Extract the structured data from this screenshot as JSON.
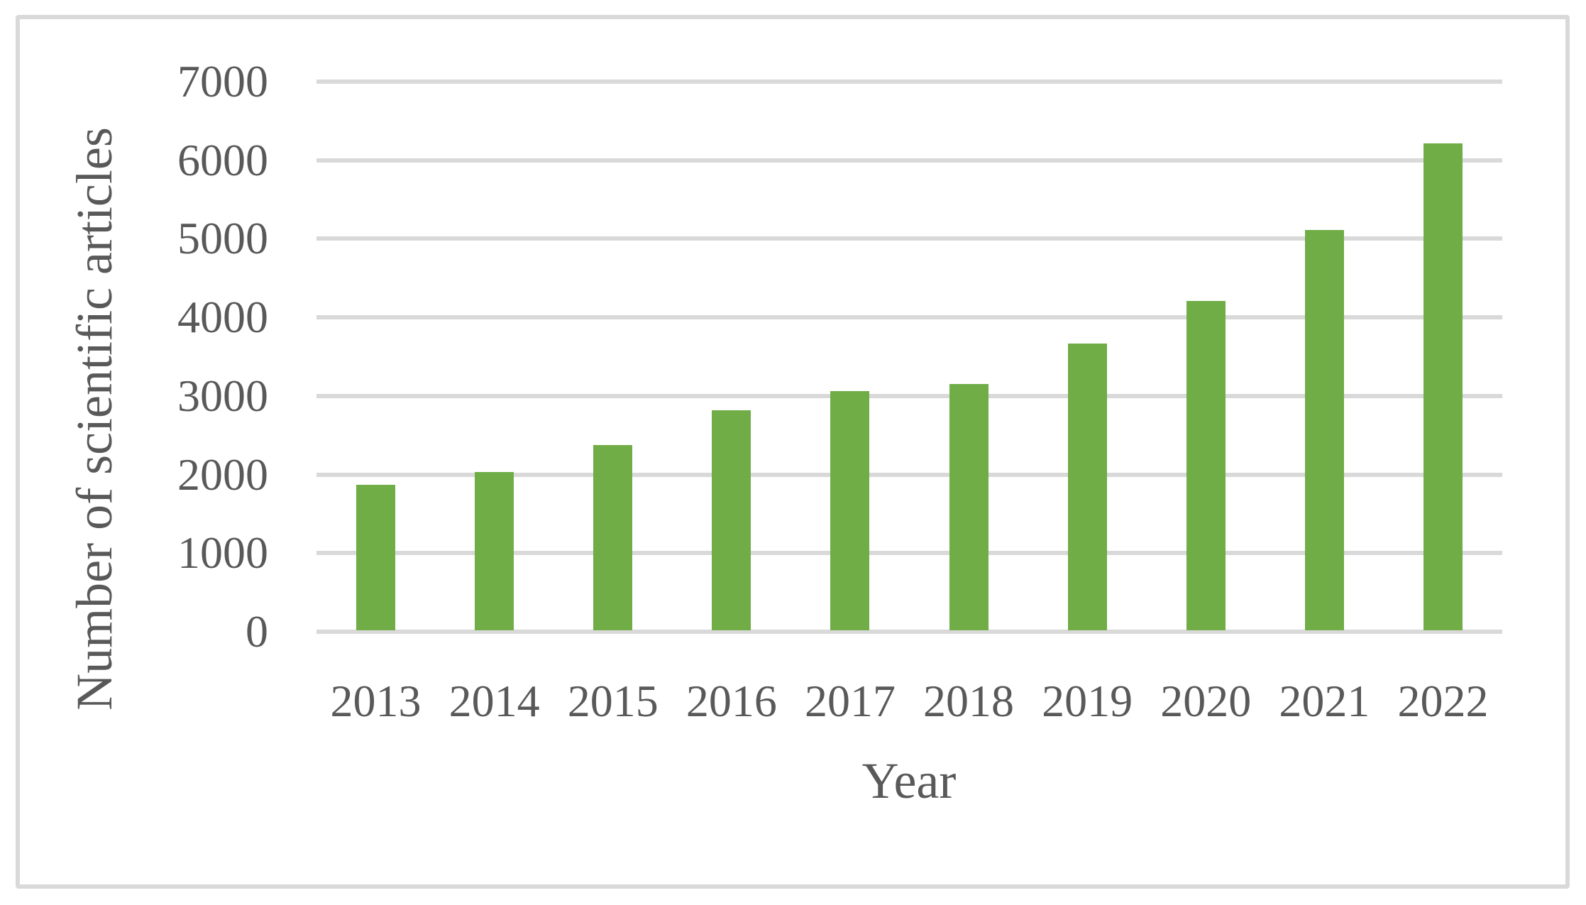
{
  "chart_data": {
    "type": "bar",
    "title": "",
    "xlabel": "Year",
    "ylabel": "Number of scientific articles",
    "categories": [
      "2013",
      "2014",
      "2015",
      "2016",
      "2017",
      "2018",
      "2019",
      "2020",
      "2021",
      "2022"
    ],
    "values": [
      1850,
      2010,
      2360,
      2800,
      3040,
      3130,
      3650,
      4190,
      5090,
      6200
    ],
    "ylim": [
      0,
      7000
    ],
    "ytick_interval": 1000,
    "yticks": [
      0,
      1000,
      2000,
      3000,
      4000,
      5000,
      6000,
      7000
    ],
    "grid": "horizontal",
    "legend": "none",
    "colors": {
      "bar": "#70AD47",
      "gridline": "#D9D9D9",
      "text": "#595959",
      "border": "#D9D9D9",
      "background": "#FFFFFF"
    }
  }
}
